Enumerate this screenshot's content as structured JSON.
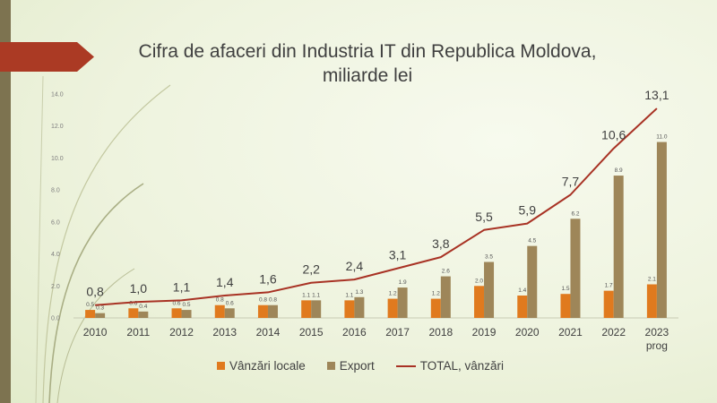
{
  "title": [
    "Cifra de afaceri din Industria IT din Republica Moldova,",
    "miliarde lei"
  ],
  "colors": {
    "local": "#e07a1e",
    "export": "#9e8659",
    "total": "#a83224",
    "title_arrow": "#ab3a24",
    "left_bar": "#7d7350"
  },
  "chart_data": {
    "type": "bar",
    "title": "Cifra de afaceri din Industria IT din Republica Moldova, miliarde lei",
    "categories": [
      [
        "2010"
      ],
      [
        "2011"
      ],
      [
        "2012"
      ],
      [
        "2013"
      ],
      [
        "2014"
      ],
      [
        "2015"
      ],
      [
        "2016"
      ],
      [
        "2017"
      ],
      [
        "2018"
      ],
      [
        "2019"
      ],
      [
        "2020"
      ],
      [
        "2021"
      ],
      [
        "2022"
      ],
      [
        "2023",
        "prog"
      ]
    ],
    "ylim": [
      0,
      14
    ],
    "yticks": [
      "0.0",
      "2.0",
      "4.0",
      "6.0",
      "8.0",
      "10.0",
      "12.0",
      "14.0"
    ],
    "series": [
      {
        "name": "Vânzări locale",
        "kind": "bar",
        "values": [
          0.5,
          0.6,
          0.6,
          0.8,
          0.8,
          1.1,
          1.1,
          1.2,
          1.2,
          2.0,
          1.4,
          1.5,
          1.7,
          2.1
        ],
        "labels": [
          "0.5",
          "0.6",
          "0.6",
          "0.8",
          "0.8",
          "1.1",
          "1.1",
          "1.2",
          "1.2",
          "2.0",
          "1.4",
          "1.5",
          "1.7",
          "2.1"
        ]
      },
      {
        "name": "Export",
        "kind": "bar",
        "values": [
          0.3,
          0.4,
          0.5,
          0.6,
          0.8,
          1.1,
          1.3,
          1.9,
          2.6,
          3.5,
          4.5,
          6.2,
          8.9,
          11.0
        ],
        "labels": [
          "0.3",
          "0.4",
          "0.5",
          "0.6",
          "0.8",
          "1.1",
          "1.3",
          "1.9",
          "2.6",
          "3.5",
          "4.5",
          "6.2",
          "8.9",
          "11.0"
        ]
      },
      {
        "name": "TOTAL, vânzări",
        "kind": "line",
        "values": [
          0.8,
          1.0,
          1.1,
          1.4,
          1.6,
          2.2,
          2.4,
          3.1,
          3.8,
          5.5,
          5.9,
          7.7,
          10.6,
          13.1
        ],
        "labels": [
          "0,8",
          "1,0",
          "1,1",
          "1,4",
          "1,6",
          "2,2",
          "2,4",
          "3,1",
          "3,8",
          "5,5",
          "5,9",
          "7,7",
          "10,6",
          "13,1"
        ]
      }
    ],
    "grid": false,
    "legend": "bottom"
  }
}
